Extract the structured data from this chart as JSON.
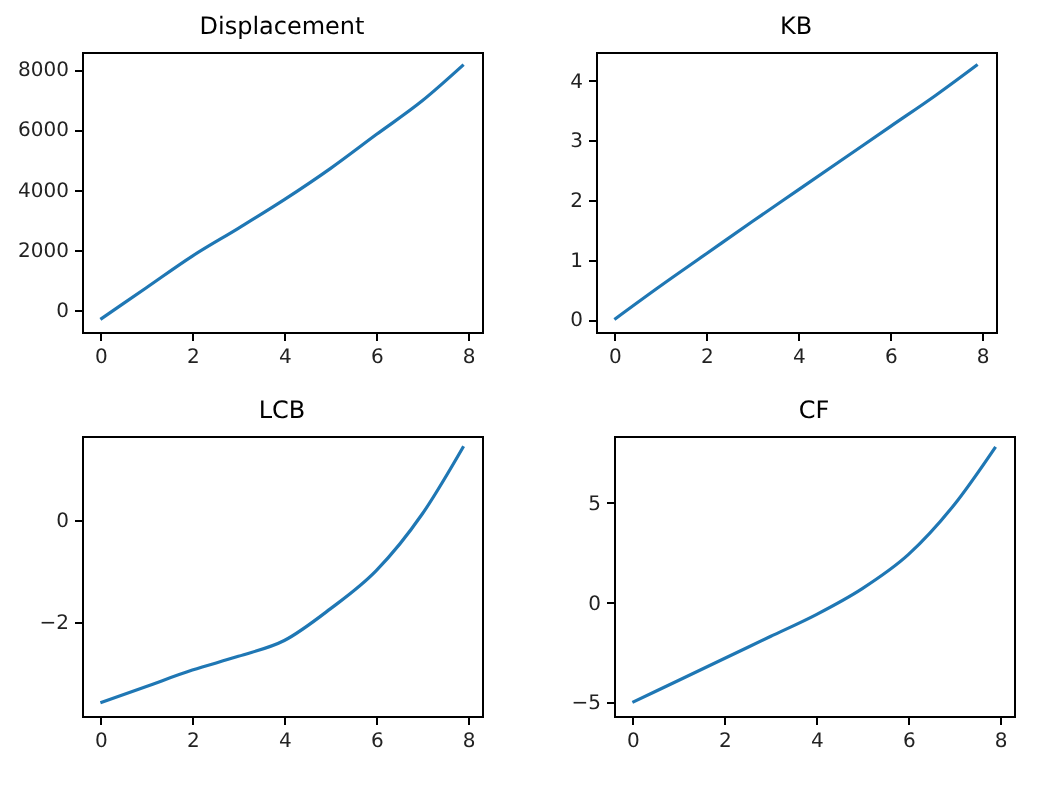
{
  "chart_data": [
    {
      "type": "line",
      "title": "Displacement",
      "x": [
        0,
        1,
        2,
        3,
        4,
        5,
        6,
        7,
        7.9
      ],
      "values": [
        -300,
        750,
        1800,
        2720,
        3670,
        4700,
        5830,
        6950,
        8150
      ],
      "color": "#1f77b4",
      "xlim": [
        -0.4,
        8.3
      ],
      "xticks": [
        0,
        2,
        4,
        6,
        8
      ],
      "ylim": [
        -720,
        8570
      ],
      "yticks": [
        0,
        2000,
        4000,
        6000,
        8000
      ],
      "grid": false
    },
    {
      "type": "line",
      "title": "KB",
      "x": [
        0,
        1,
        2,
        3,
        4,
        5,
        6,
        7,
        7.9
      ],
      "values": [
        0,
        0.56,
        1.1,
        1.64,
        2.17,
        2.7,
        3.23,
        3.76,
        4.27
      ],
      "color": "#1f77b4",
      "xlim": [
        -0.4,
        8.3
      ],
      "xticks": [
        0,
        2,
        4,
        6,
        8
      ],
      "ylim": [
        -0.21,
        4.48
      ],
      "yticks": [
        0,
        1,
        2,
        3,
        4
      ],
      "grid": false
    },
    {
      "type": "line",
      "title": "LCB",
      "x": [
        0,
        1,
        2,
        3,
        4,
        5,
        6,
        7,
        7.9
      ],
      "values": [
        -3.58,
        -3.26,
        -2.94,
        -2.67,
        -2.36,
        -1.74,
        -0.99,
        0.12,
        1.45
      ],
      "color": "#1f77b4",
      "xlim": [
        -0.4,
        8.3
      ],
      "xticks": [
        0,
        2,
        4,
        6,
        8
      ],
      "ylim": [
        -3.84,
        1.65
      ],
      "yticks": [
        {
          "value": -2,
          "label": "−2"
        },
        0
      ],
      "grid": false
    },
    {
      "type": "line",
      "title": "CF",
      "x": [
        0,
        1,
        2,
        3,
        4,
        5,
        6,
        7,
        7.9
      ],
      "values": [
        -5,
        -3.9,
        -2.8,
        -1.7,
        -0.6,
        0.7,
        2.4,
        4.9,
        7.8
      ],
      "color": "#1f77b4",
      "xlim": [
        -0.4,
        8.3
      ],
      "xticks": [
        0,
        2,
        4,
        6,
        8
      ],
      "ylim": [
        -5.68,
        8.34
      ],
      "yticks": [
        {
          "value": -5,
          "label": "−5"
        },
        0,
        5
      ],
      "grid": false
    }
  ]
}
